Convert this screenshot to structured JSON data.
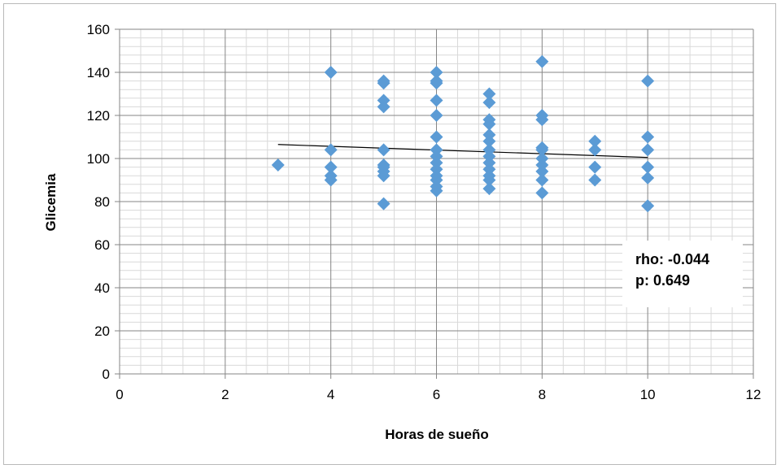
{
  "chart_data": {
    "type": "scatter",
    "title": "",
    "xlabel": "Horas de sueño",
    "ylabel": "Glicemia",
    "xlim": [
      0,
      12
    ],
    "ylim": [
      0,
      160
    ],
    "xticks": [
      0,
      2,
      4,
      6,
      8,
      10,
      12
    ],
    "yticks": [
      0,
      20,
      40,
      60,
      80,
      100,
      120,
      140,
      160
    ],
    "xtick_labels": [
      "0",
      "2",
      "4",
      "6",
      "8",
      "10",
      "12"
    ],
    "ytick_labels": [
      "0",
      "20",
      "40",
      "60",
      "80",
      "100",
      "120",
      "140",
      "160"
    ],
    "grid": true,
    "marker": "diamond",
    "marker_color": "#5b9bd5",
    "trendline": {
      "x": [
        3,
        10
      ],
      "y": [
        106.5,
        100.5
      ],
      "color": "#000000"
    },
    "annotations": [
      "rho: -0.044",
      "p: 0.649"
    ],
    "points": [
      {
        "x": 3,
        "y": 97
      },
      {
        "x": 4,
        "y": 140
      },
      {
        "x": 4,
        "y": 104
      },
      {
        "x": 4,
        "y": 96
      },
      {
        "x": 4,
        "y": 92
      },
      {
        "x": 4,
        "y": 90
      },
      {
        "x": 5,
        "y": 136
      },
      {
        "x": 5,
        "y": 135
      },
      {
        "x": 5,
        "y": 127
      },
      {
        "x": 5,
        "y": 124
      },
      {
        "x": 5,
        "y": 104
      },
      {
        "x": 5,
        "y": 97
      },
      {
        "x": 5,
        "y": 96
      },
      {
        "x": 5,
        "y": 94
      },
      {
        "x": 5,
        "y": 92
      },
      {
        "x": 5,
        "y": 79
      },
      {
        "x": 6,
        "y": 140
      },
      {
        "x": 6,
        "y": 136
      },
      {
        "x": 6,
        "y": 135
      },
      {
        "x": 6,
        "y": 127
      },
      {
        "x": 6,
        "y": 120
      },
      {
        "x": 6,
        "y": 110
      },
      {
        "x": 6,
        "y": 104
      },
      {
        "x": 6,
        "y": 101
      },
      {
        "x": 6,
        "y": 98
      },
      {
        "x": 6,
        "y": 95
      },
      {
        "x": 6,
        "y": 92
      },
      {
        "x": 6,
        "y": 90
      },
      {
        "x": 6,
        "y": 87
      },
      {
        "x": 6,
        "y": 85
      },
      {
        "x": 7,
        "y": 130
      },
      {
        "x": 7,
        "y": 126
      },
      {
        "x": 7,
        "y": 118
      },
      {
        "x": 7,
        "y": 116
      },
      {
        "x": 7,
        "y": 111
      },
      {
        "x": 7,
        "y": 108
      },
      {
        "x": 7,
        "y": 104
      },
      {
        "x": 7,
        "y": 101
      },
      {
        "x": 7,
        "y": 98
      },
      {
        "x": 7,
        "y": 95
      },
      {
        "x": 7,
        "y": 92
      },
      {
        "x": 7,
        "y": 90
      },
      {
        "x": 7,
        "y": 86
      },
      {
        "x": 8,
        "y": 145
      },
      {
        "x": 8,
        "y": 120
      },
      {
        "x": 8,
        "y": 118
      },
      {
        "x": 8,
        "y": 105
      },
      {
        "x": 8,
        "y": 104
      },
      {
        "x": 8,
        "y": 100
      },
      {
        "x": 8,
        "y": 97
      },
      {
        "x": 8,
        "y": 94
      },
      {
        "x": 8,
        "y": 90
      },
      {
        "x": 8,
        "y": 84
      },
      {
        "x": 9,
        "y": 108
      },
      {
        "x": 9,
        "y": 104
      },
      {
        "x": 9,
        "y": 96
      },
      {
        "x": 9,
        "y": 90
      },
      {
        "x": 10,
        "y": 136
      },
      {
        "x": 10,
        "y": 110
      },
      {
        "x": 10,
        "y": 104
      },
      {
        "x": 10,
        "y": 96
      },
      {
        "x": 10,
        "y": 91
      },
      {
        "x": 10,
        "y": 78
      }
    ]
  }
}
